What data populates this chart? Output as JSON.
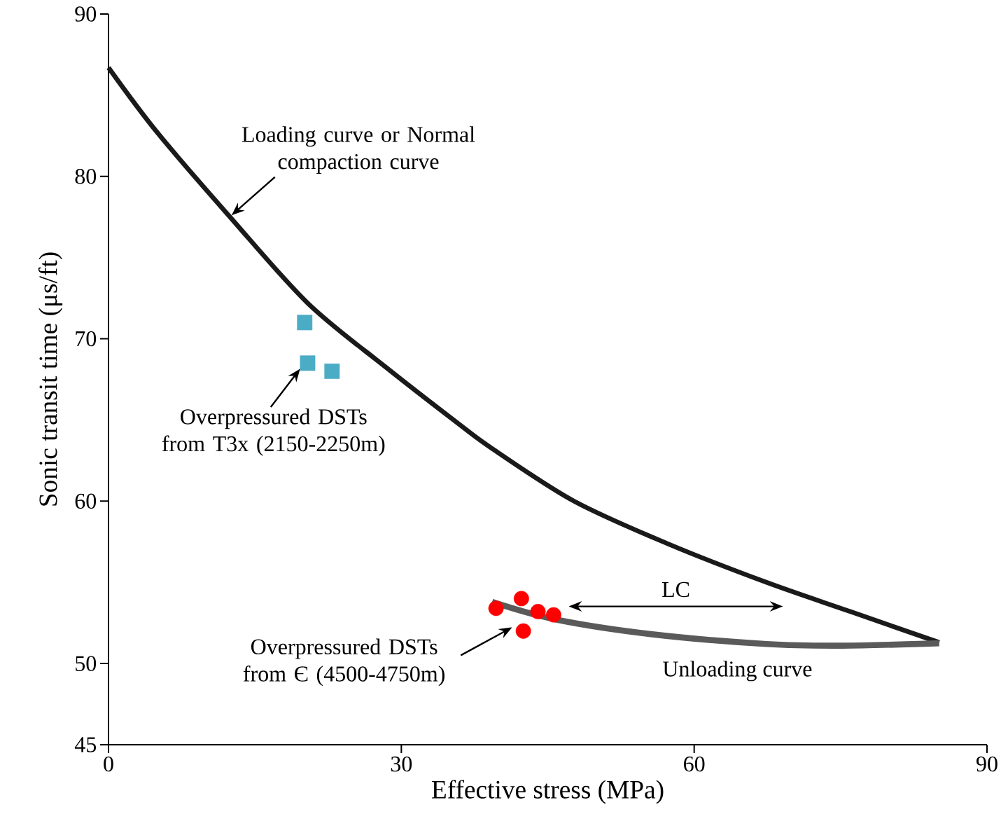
{
  "chart_data": {
    "type": "line",
    "xlabel": "Effective stress (MPa)",
    "ylabel": "Sonic transit time (μs/ft)",
    "xlim": [
      0,
      90
    ],
    "ylim": [
      45,
      90
    ],
    "xticks": [
      0,
      30,
      60,
      90
    ],
    "yticks": [
      45,
      50,
      60,
      70,
      80,
      90
    ],
    "grid": false,
    "series": [
      {
        "color": "#1a1a1a",
        "marker": "none",
        "x": [
          0,
          5,
          12.45,
          20.4,
          28.3,
          36,
          39.4,
          47.7,
          57.4,
          67.4,
          76,
          85.1
        ],
        "values": [
          86.7,
          82.7,
          77.5,
          72.2,
          68.3,
          64.7,
          63.2,
          60.0,
          57.35,
          55.0,
          53.2,
          51.3
        ]
      },
      {
        "name": "Unloading  curve",
        "color": "#5a5a5a",
        "marker": "none",
        "x": [
          39.3,
          45.9,
          55.7,
          67.4,
          75.2,
          85.1
        ],
        "values": [
          53.8,
          52.7,
          51.8,
          51.2,
          51.1,
          51.25
        ]
      },
      {
        "type": "scatter",
        "color": "#4bacc6",
        "marker": "square",
        "x": [
          20.1,
          20.4,
          22.9
        ],
        "values": [
          71.0,
          68.5,
          68.0
        ]
      },
      {
        "type": "scatter",
        "color": "#ff0000",
        "marker": "circle",
        "x": [
          39.7,
          42.3,
          44.0,
          45.6,
          42.5
        ],
        "values": [
          53.4,
          54.0,
          53.2,
          53.0,
          52.0
        ]
      }
    ],
    "annotations": [
      {
        "text": "Loading curve or Normal compaction curve",
        "x": 12.6,
        "y": 77.6
      },
      "Overpressured DSTs from T3x (2150-2250m)",
      "Overpressured DSTs from Є (4500-4750m)",
      "LC"
    ]
  }
}
